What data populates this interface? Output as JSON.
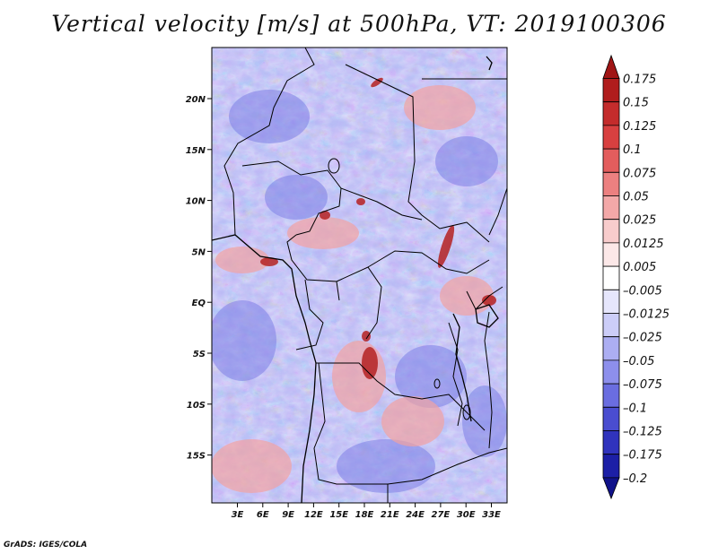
{
  "title": "Vertical velocity [m/s] at 500hPa, VT: 2019100306",
  "credit": "GrADS: IGES/COLA",
  "map": {
    "lat_ticks": [
      "20N",
      "15N",
      "10N",
      "5N",
      "EQ",
      "5S",
      "10S",
      "15S"
    ],
    "lon_ticks": [
      "3E",
      "6E",
      "9E",
      "12E",
      "15E",
      "18E",
      "21E",
      "24E",
      "27E",
      "30E",
      "33E"
    ]
  },
  "colorbar": {
    "labels": [
      "0.175",
      "0.15",
      "0.125",
      "0.1",
      "0.075",
      "0.05",
      "0.025",
      "0.0125",
      "0.005",
      "–0.005",
      "–0.0125",
      "–0.025",
      "–0.05",
      "–0.075",
      "–0.1",
      "–0.125",
      "–0.175",
      "–0.2"
    ],
    "colors": [
      "#a01515",
      "#b01d1d",
      "#c42c2c",
      "#d84040",
      "#e35d5d",
      "#ec8080",
      "#f3a8a8",
      "#f8cccc",
      "#fce8e8",
      "#ffffff",
      "#e6e6fc",
      "#cccdf8",
      "#acaef2",
      "#8d8fec",
      "#6a6de0",
      "#4a4dd0",
      "#3033bd",
      "#1c1fa6",
      "#10128a"
    ]
  }
}
